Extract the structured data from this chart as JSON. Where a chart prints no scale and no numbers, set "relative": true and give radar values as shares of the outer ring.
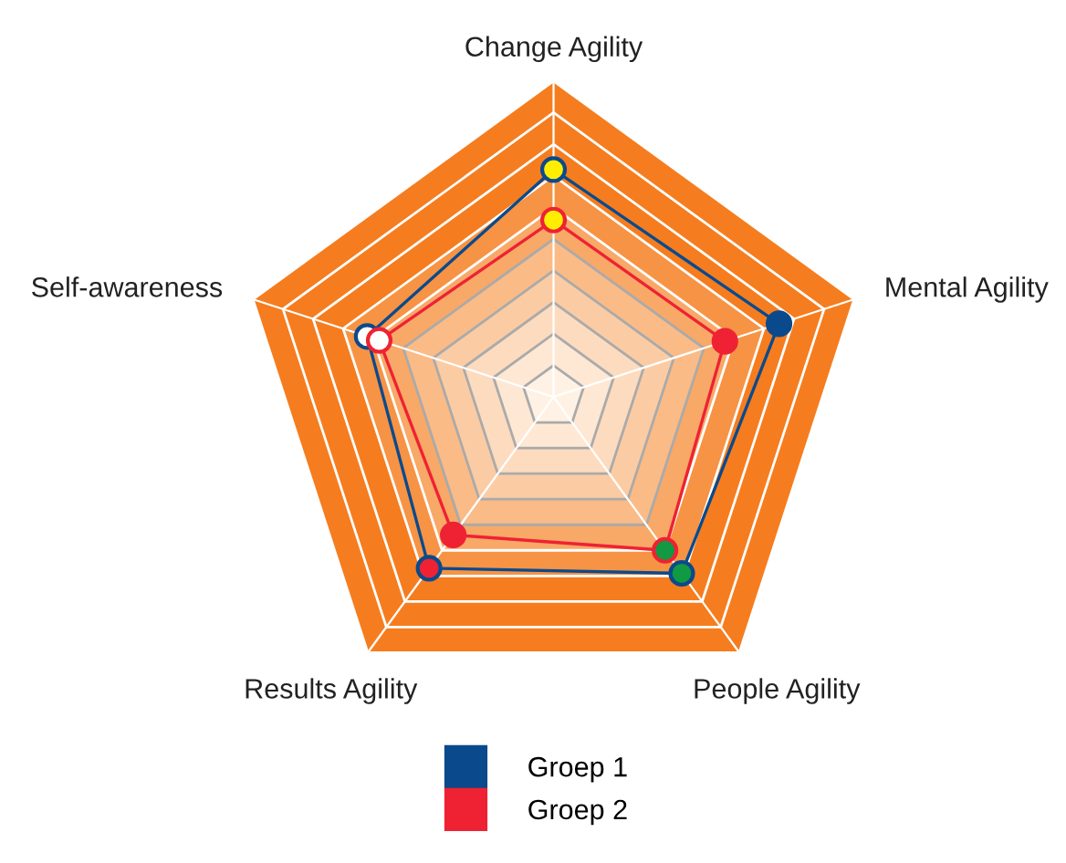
{
  "chart_data": {
    "type": "radar",
    "relative": true,
    "categories": [
      "Change Agility",
      "Mental Agility",
      "People Agility",
      "Results Agility",
      "Self-awareness"
    ],
    "series": [
      {
        "name": "Groep 1",
        "color": "#0a4a8c",
        "values": [
          0.72,
          0.75,
          0.69,
          0.67,
          0.62
        ],
        "colors": [
          "#ffee00",
          "#0a4a8c",
          "#119944",
          "#ee2233",
          "#ffffff"
        ]
      },
      {
        "name": "Groep 2",
        "color": "#ee2233",
        "values": [
          0.56,
          0.57,
          0.6,
          0.54,
          0.58
        ],
        "colors": [
          "#ffee00",
          "#ee2233",
          "#119944",
          "#ee2233",
          "#ffffff"
        ]
      }
    ],
    "marker": "circle",
    "legend": "bottom",
    "grid": true
  }
}
